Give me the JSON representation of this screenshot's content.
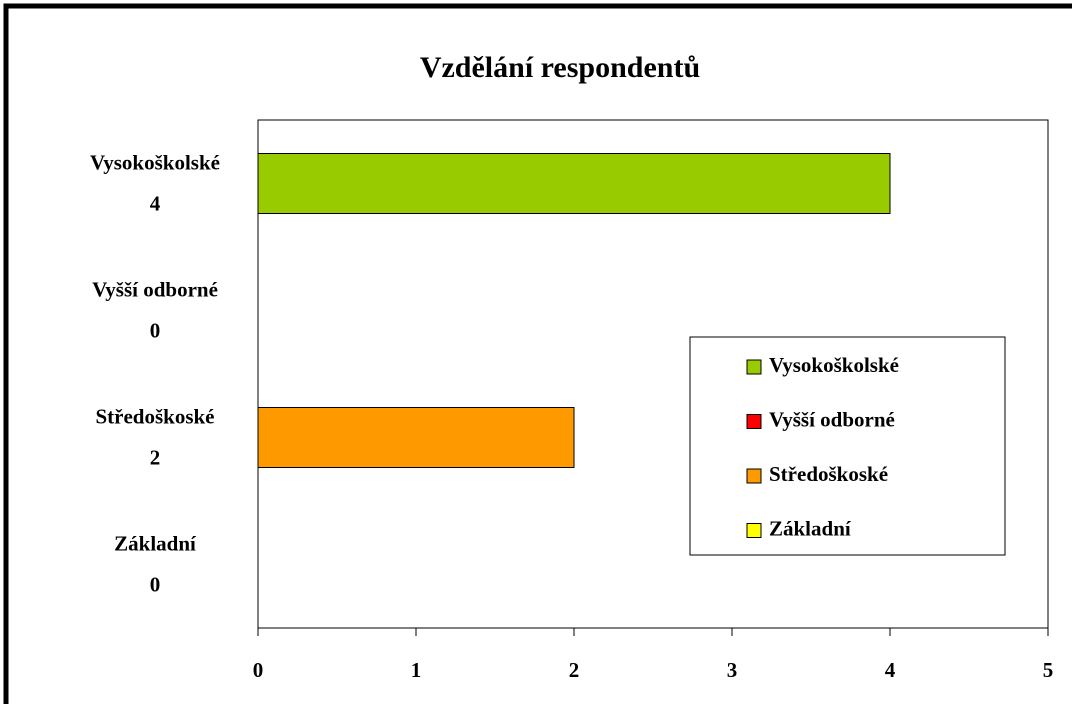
{
  "chart_data": {
    "type": "bar",
    "horizontal": true,
    "title": "Vzdělání respondentů",
    "categories": [
      "Vysokoškolské",
      "Vyšší odborné",
      "Středoškoské",
      "Základní"
    ],
    "values": [
      4,
      0,
      2,
      0
    ],
    "colors": [
      "#99cc00",
      "#ff0000",
      "#ff9900",
      "#ffff00"
    ],
    "xlim": [
      0,
      5
    ],
    "xticks": [
      0,
      1,
      2,
      3,
      4,
      5
    ],
    "legend": "right"
  }
}
